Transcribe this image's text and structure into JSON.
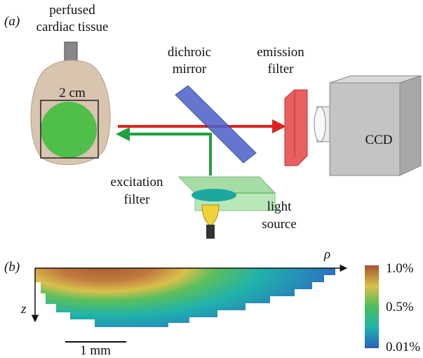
{
  "panel_a": {
    "label": "(a)",
    "tissue_label": [
      "perfused",
      "cardiac tissue"
    ],
    "scale": "2 cm",
    "mirror_label": [
      "dichroic",
      "mirror"
    ],
    "emission_label": [
      "emission",
      "filter"
    ],
    "camera": "CCD",
    "excitation_label": [
      "excitation",
      "filter"
    ],
    "source_label": [
      "light",
      "source"
    ]
  },
  "panel_b": {
    "label": "(b)",
    "x_axis": "ρ",
    "y_axis": "z",
    "scale": "1 mm",
    "colorbar": [
      "1.0%",
      "0.5%",
      "0.01%"
    ]
  }
}
